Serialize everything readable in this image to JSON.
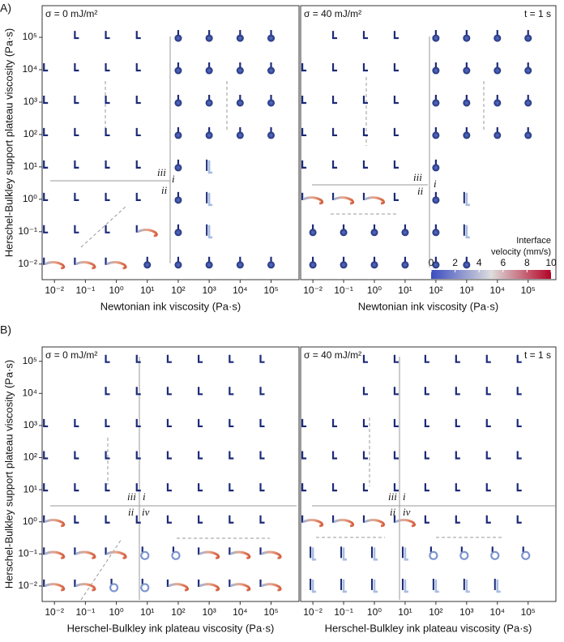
{
  "panel_labels": [
    "A)",
    "B)"
  ],
  "chart_data": [
    {
      "type": "glyph-grid",
      "title": "σ = 0 mJ/m²",
      "xlabel": "Newtonian ink viscosity (Pa·s)",
      "ylabel": "Herschel-Bulkley support plateau viscosity (Pa·s)",
      "log": true,
      "xlim": [
        0.004,
        800000
      ],
      "ylim": [
        0.0033,
        950000
      ],
      "xticks": [
        {
          "value": 0.01,
          "label": "10⁻²"
        },
        {
          "value": 0.1,
          "label": "10⁻¹"
        },
        {
          "value": 1,
          "label": "10⁰"
        },
        {
          "value": 10,
          "label": "10¹"
        },
        {
          "value": 100,
          "label": "10²"
        },
        {
          "value": 1000,
          "label": "10³"
        },
        {
          "value": 10000,
          "label": "10⁴"
        },
        {
          "value": 100000,
          "label": "10⁵"
        }
      ],
      "yticks": [
        {
          "value": 0.01,
          "label": "10⁻²"
        },
        {
          "value": 0.1,
          "label": "10⁻¹"
        },
        {
          "value": 1,
          "label": "10⁰"
        },
        {
          "value": 10,
          "label": "10¹"
        },
        {
          "value": 100,
          "label": "10²"
        },
        {
          "value": 1000,
          "label": "10³"
        },
        {
          "value": 10000,
          "label": "10⁴"
        },
        {
          "value": 100000,
          "label": "10⁵"
        }
      ],
      "annotations": [
        "iii",
        "i",
        "ii"
      ]
    },
    {
      "type": "glyph-grid",
      "title": "σ = 40 mJ/m²",
      "annotation": "t = 1 s",
      "xlabel": "Newtonian ink viscosity (Pa·s)",
      "log": true,
      "xlim": [
        0.004,
        800000
      ],
      "ylim": [
        0.0033,
        950000
      ],
      "xticks": [
        {
          "value": 0.01,
          "label": "10⁻²"
        },
        {
          "value": 0.1,
          "label": "10⁻¹"
        },
        {
          "value": 1,
          "label": "10⁰"
        },
        {
          "value": 10,
          "label": "10¹"
        },
        {
          "value": 100,
          "label": "10²"
        },
        {
          "value": 1000,
          "label": "10³"
        },
        {
          "value": 10000,
          "label": "10⁴"
        },
        {
          "value": 100000,
          "label": "10⁵"
        }
      ],
      "annotations": [
        "iii",
        "i",
        "ii"
      ],
      "colorbar": {
        "title": [
          "Interface",
          "velocity (mm/s)"
        ],
        "lim": [
          0,
          10
        ],
        "ticks": [
          0,
          2,
          4,
          6,
          8,
          10
        ],
        "colors": [
          "#3b4cc0",
          "#dddddd",
          "#b40426"
        ]
      }
    },
    {
      "type": "glyph-grid",
      "title": "σ = 0 mJ/m²",
      "xlabel": "Herschel-Bulkley ink plateau viscosity (Pa·s)",
      "ylabel": "Herschel-Bulkley support plateau viscosity (Pa·s)",
      "log": true,
      "xlim": [
        0.004,
        800000
      ],
      "ylim": [
        0.0033,
        280000
      ],
      "xticks": [
        {
          "value": 0.01,
          "label": "10⁻²"
        },
        {
          "value": 0.1,
          "label": "10⁻¹"
        },
        {
          "value": 1,
          "label": "10⁰"
        },
        {
          "value": 10,
          "label": "10¹"
        },
        {
          "value": 100,
          "label": "10²"
        },
        {
          "value": 1000,
          "label": "10³"
        },
        {
          "value": 10000,
          "label": "10⁴"
        },
        {
          "value": 100000,
          "label": "10⁵"
        }
      ],
      "yticks": [
        {
          "value": 0.01,
          "label": "10⁻²"
        },
        {
          "value": 0.1,
          "label": "10⁻¹"
        },
        {
          "value": 1,
          "label": "10⁰"
        },
        {
          "value": 10,
          "label": "10¹"
        },
        {
          "value": 100,
          "label": "10²"
        },
        {
          "value": 1000,
          "label": "10³"
        },
        {
          "value": 10000,
          "label": "10⁴"
        },
        {
          "value": 100000,
          "label": "10⁵"
        }
      ],
      "annotations": [
        "iii",
        "i",
        "ii",
        "iv"
      ]
    },
    {
      "type": "glyph-grid",
      "title": "σ = 40 mJ/m²",
      "annotation": "t = 1 s",
      "xlabel": "Herschel-Bulkley ink plateau viscosity (Pa·s)",
      "log": true,
      "xlim": [
        0.004,
        800000
      ],
      "ylim": [
        0.0033,
        280000
      ],
      "xticks": [
        {
          "value": 0.01,
          "label": "10⁻²"
        },
        {
          "value": 0.1,
          "label": "10⁻¹"
        },
        {
          "value": 1,
          "label": "10⁰"
        },
        {
          "value": 10,
          "label": "10¹"
        },
        {
          "value": 100,
          "label": "10²"
        },
        {
          "value": 1000,
          "label": "10³"
        },
        {
          "value": 10000,
          "label": "10⁴"
        },
        {
          "value": 100000,
          "label": "10⁵"
        }
      ],
      "annotations": [
        "iii",
        "i",
        "ii",
        "iv"
      ]
    }
  ]
}
